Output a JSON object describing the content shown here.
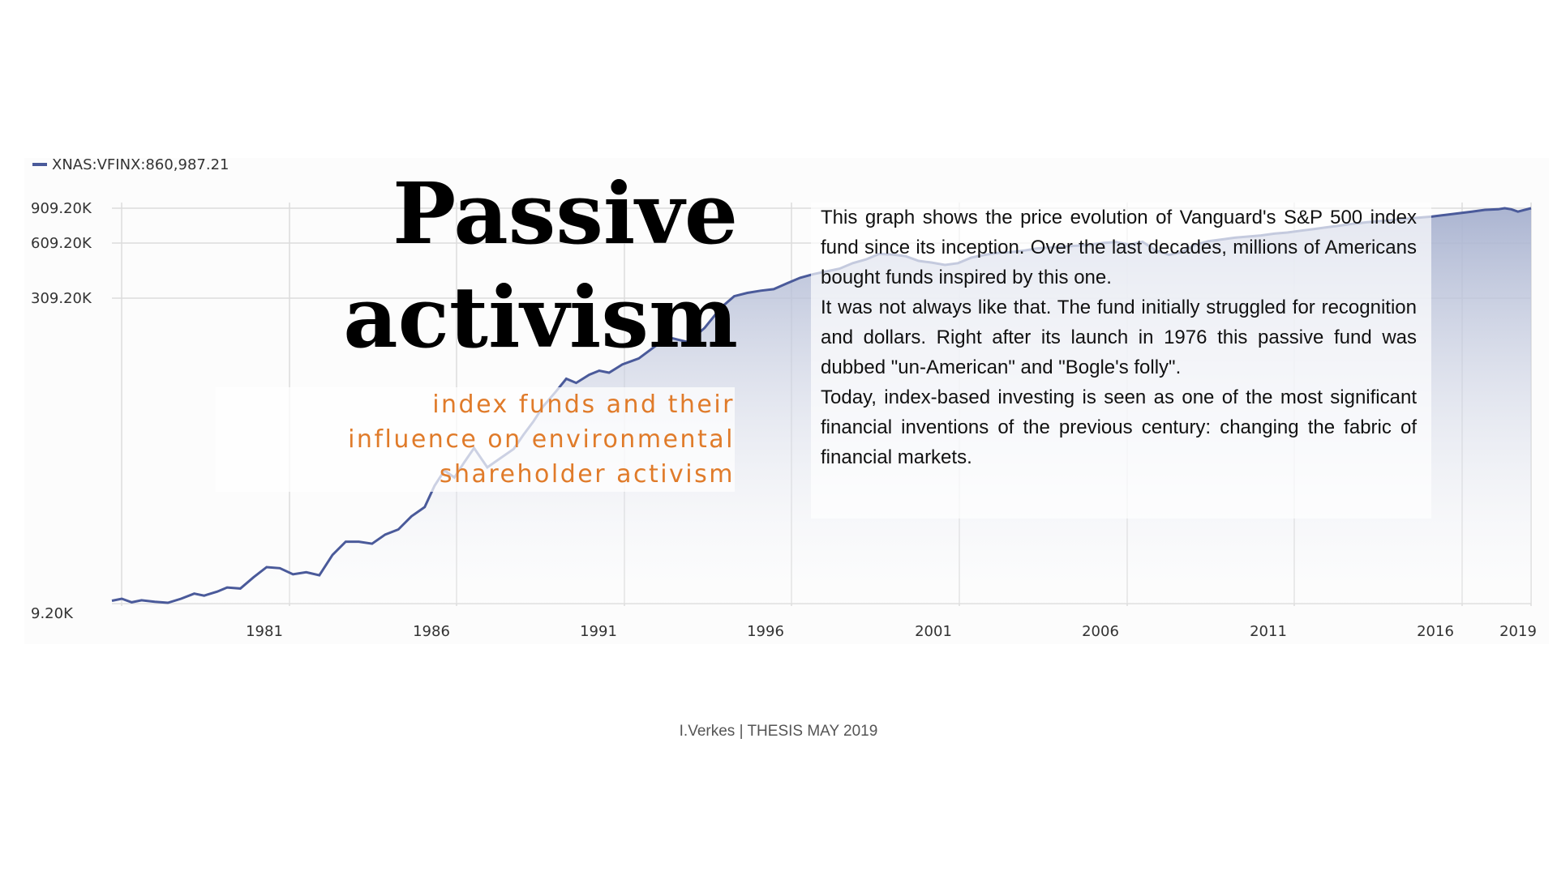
{
  "chart_data": {
    "type": "area",
    "legend": {
      "label": "XNAS:VFINX:860,987.21",
      "placement": "top-left",
      "color": "#4a5a9a"
    },
    "yticks": [
      {
        "label": "909.20K",
        "value": 909200
      },
      {
        "label": "609.20K",
        "value": 609200
      },
      {
        "label": "309.20K",
        "value": 309200
      },
      {
        "label": "9.20K",
        "value": 9200
      }
    ],
    "xticks": [
      "1981",
      "1986",
      "1991",
      "1996",
      "2001",
      "2006",
      "2011",
      "2016",
      "2019"
    ],
    "xlim": [
      1976.5,
      2019.6
    ],
    "grid": true,
    "series_color": "#4a5a9a",
    "series": [
      {
        "x": [
          1976.5,
          1976.8,
          1977.1,
          1977.4,
          1977.8,
          1978.2,
          1978.6,
          1979.0,
          1979.3,
          1979.7,
          1980.0,
          1980.4,
          1980.8,
          1981.2,
          1981.6,
          1982.0,
          1982.4,
          1982.8,
          1983.2,
          1983.6,
          1984.0,
          1984.4,
          1984.8,
          1985.2,
          1985.6,
          1986.0,
          1986.3,
          1986.6,
          1986.9,
          1987.2,
          1987.5,
          1987.9,
          1988.3,
          1988.7,
          1989.0,
          1989.3,
          1989.6,
          1990.0,
          1990.3,
          1990.6,
          1991.0,
          1991.3,
          1991.6,
          1992.0,
          1992.5,
          1993.0,
          1993.5,
          1994.0,
          1994.5,
          1995.0,
          1995.4,
          1995.8,
          1996.2,
          1996.6,
          1997.0,
          1997.4,
          1997.8,
          1998.2,
          1998.6,
          1999.0,
          1999.4,
          1999.8,
          2000.2,
          2000.6,
          2001.0,
          2001.4,
          2001.8,
          2002.2,
          2002.6,
          2003.0,
          2003.4,
          2003.8,
          2004.2,
          2004.6,
          2005.0,
          2005.4,
          2005.8,
          2006.2,
          2006.6,
          2007.0,
          2007.4,
          2007.8,
          2008.2,
          2008.6,
          2009.0,
          2009.4,
          2009.8,
          2010.2,
          2010.6,
          2011.0,
          2011.4,
          2011.8,
          2012.2,
          2012.6,
          2013.0,
          2013.4,
          2013.8,
          2014.2,
          2014.6,
          2015.0,
          2015.4,
          2015.8,
          2016.2,
          2016.6,
          2017.0,
          2017.4,
          2017.8,
          2018.2,
          2018.6,
          2018.8,
          2019.0,
          2019.2,
          2019.6
        ],
        "y": [
          12000,
          14000,
          10500,
          12500,
          11000,
          10000,
          14000,
          19000,
          17000,
          21000,
          25000,
          24000,
          35000,
          45000,
          44000,
          38000,
          40000,
          37000,
          57000,
          70000,
          70000,
          68000,
          77000,
          82000,
          95000,
          104000,
          125000,
          140000,
          133000,
          148000,
          162000,
          143000,
          152000,
          161000,
          175000,
          188000,
          203000,
          218000,
          230000,
          226000,
          234000,
          238000,
          236000,
          244000,
          250000,
          262000,
          270000,
          266000,
          280000,
          300000,
          320000,
          338000,
          350000,
          358000,
          390000,
          420000,
          440000,
          455000,
          470000,
          500000,
          520000,
          550000,
          547000,
          538000,
          512000,
          503000,
          490000,
          500000,
          530000,
          545000,
          556000,
          560000,
          568000,
          580000,
          585000,
          590000,
          595000,
          600000,
          610000,
          618000,
          600000,
          620000,
          570000,
          545000,
          560000,
          600000,
          625000,
          640000,
          655000,
          665000,
          675000,
          690000,
          700000,
          715000,
          730000,
          745000,
          760000,
          775000,
          788000,
          798000,
          808000,
          818000,
          828000,
          838000,
          852000,
          866000,
          880000,
          895000,
          900000,
          912000,
          900000,
          880000,
          909000
        ]
      }
    ]
  },
  "title_line1": "Passive",
  "title_line2": "activism",
  "subtitle_line1": "index funds and their",
  "subtitle_line2": "influence on environmental",
  "subtitle_line3": "shareholder activism",
  "paragraph1": "This graph shows the price evolution of Vanguard's S&P 500 index fund since its inception. Over the last decades, millions of Americans bought funds inspired by this one.",
  "paragraph2": "It was not always like that. The fund initially struggled for recognition and dollars. Right after its launch in 1976 this passive fund was dubbed \"un-American\" and \"Bogle's folly\".",
  "paragraph3": "Today, index-based investing is seen as one of the most significant financial inventions of the previous century: changing the fabric of financial markets.",
  "footer": "I.Verkes | THESIS MAY 2019"
}
